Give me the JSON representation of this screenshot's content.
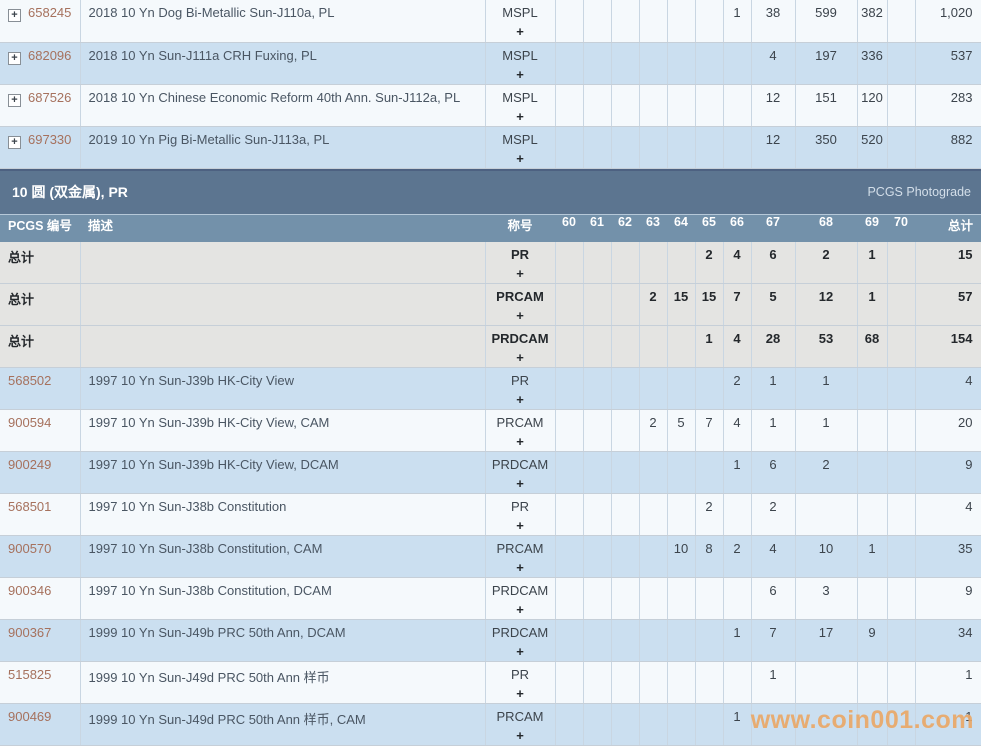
{
  "section": {
    "title": "10 圆 (双金属), PR",
    "photograde_label": "PCGS Photograde"
  },
  "table": {
    "headers": {
      "pcgs_no": "PCGS 编号",
      "desc": "描述",
      "desig": "称号",
      "total": "总计"
    },
    "grade_labels": [
      "60",
      "61",
      "62",
      "63",
      "64",
      "65",
      "66",
      "67",
      "68",
      "69",
      "70"
    ],
    "plus_label": "+",
    "expand_icon_glyph": "+",
    "summary_label": "总计"
  },
  "mspl_rows": [
    {
      "row_type": "coin",
      "pcgs_no": "658245",
      "description": "2018 10 Yn Dog Bi-Metallic Sun-J110a, PL",
      "designation": "MSPL",
      "grades": [
        "",
        "",
        "",
        "",
        "",
        "",
        "1",
        "38",
        "599",
        "382",
        ""
      ],
      "total": "1,020",
      "shade": "light"
    },
    {
      "row_type": "coin",
      "pcgs_no": "682096",
      "description": "2018 10 Yn Sun-J111a CRH Fuxing, PL",
      "designation": "MSPL",
      "grades": [
        "",
        "",
        "",
        "",
        "",
        "",
        "",
        "4",
        "197",
        "336",
        ""
      ],
      "total": "537",
      "shade": "blue"
    },
    {
      "row_type": "coin",
      "pcgs_no": "687526",
      "description": "2018 10 Yn Chinese Economic Reform 40th Ann. Sun-J112a, PL",
      "designation": "MSPL",
      "grades": [
        "",
        "",
        "",
        "",
        "",
        "",
        "",
        "12",
        "151",
        "120",
        ""
      ],
      "total": "283",
      "shade": "light"
    },
    {
      "row_type": "coin",
      "pcgs_no": "697330",
      "description": "2019 10 Yn Pig Bi-Metallic Sun-J113a, PL",
      "designation": "MSPL",
      "grades": [
        "",
        "",
        "",
        "",
        "",
        "",
        "",
        "12",
        "350",
        "520",
        ""
      ],
      "total": "882",
      "shade": "blue"
    }
  ],
  "pr_rows": [
    {
      "row_type": "summary",
      "label": "总计",
      "description": "",
      "designation": "PR",
      "grades": [
        "",
        "",
        "",
        "",
        "",
        "2",
        "4",
        "6",
        "2",
        "1",
        ""
      ],
      "total": "15",
      "shade": "summary"
    },
    {
      "row_type": "summary",
      "label": "总计",
      "description": "",
      "designation": "PRCAM",
      "grades": [
        "",
        "",
        "",
        "2",
        "15",
        "15",
        "7",
        "5",
        "12",
        "1",
        ""
      ],
      "total": "57",
      "shade": "summary"
    },
    {
      "row_type": "summary",
      "label": "总计",
      "description": "",
      "designation": "PRDCAM",
      "grades": [
        "",
        "",
        "",
        "",
        "",
        "1",
        "4",
        "28",
        "53",
        "68",
        ""
      ],
      "total": "154",
      "shade": "summary"
    },
    {
      "row_type": "coin",
      "pcgs_no": "568502",
      "description": "1997 10 Yn Sun-J39b HK-City View",
      "designation": "PR",
      "grades": [
        "",
        "",
        "",
        "",
        "",
        "",
        "2",
        "1",
        "1",
        "",
        ""
      ],
      "total": "4",
      "shade": "blue"
    },
    {
      "row_type": "coin",
      "pcgs_no": "900594",
      "description": "1997 10 Yn Sun-J39b HK-City View, CAM",
      "designation": "PRCAM",
      "grades": [
        "",
        "",
        "",
        "2",
        "5",
        "7",
        "4",
        "1",
        "1",
        "",
        ""
      ],
      "total": "20",
      "shade": "light"
    },
    {
      "row_type": "coin",
      "pcgs_no": "900249",
      "description": "1997 10 Yn Sun-J39b HK-City View, DCAM",
      "designation": "PRDCAM",
      "grades": [
        "",
        "",
        "",
        "",
        "",
        "",
        "1",
        "6",
        "2",
        "",
        ""
      ],
      "total": "9",
      "shade": "blue"
    },
    {
      "row_type": "coin",
      "pcgs_no": "568501",
      "description": "1997 10 Yn Sun-J38b Constitution",
      "designation": "PR",
      "grades": [
        "",
        "",
        "",
        "",
        "",
        "2",
        "",
        "2",
        "",
        "",
        ""
      ],
      "total": "4",
      "shade": "light"
    },
    {
      "row_type": "coin",
      "pcgs_no": "900570",
      "description": "1997 10 Yn Sun-J38b Constitution, CAM",
      "designation": "PRCAM",
      "grades": [
        "",
        "",
        "",
        "",
        "10",
        "8",
        "2",
        "4",
        "10",
        "1",
        ""
      ],
      "total": "35",
      "shade": "blue"
    },
    {
      "row_type": "coin",
      "pcgs_no": "900346",
      "description": "1997 10 Yn Sun-J38b Constitution, DCAM",
      "designation": "PRDCAM",
      "grades": [
        "",
        "",
        "",
        "",
        "",
        "",
        "",
        "6",
        "3",
        "",
        ""
      ],
      "total": "9",
      "shade": "light"
    },
    {
      "row_type": "coin",
      "pcgs_no": "900367",
      "description": "1999 10 Yn Sun-J49b PRC 50th Ann, DCAM",
      "designation": "PRDCAM",
      "grades": [
        "",
        "",
        "",
        "",
        "",
        "",
        "1",
        "7",
        "17",
        "9",
        ""
      ],
      "total": "34",
      "shade": "blue"
    },
    {
      "row_type": "coin",
      "pcgs_no": "515825",
      "description": "1999 10 Yn Sun-J49d PRC 50th Ann 样币",
      "designation": "PR",
      "grades": [
        "",
        "",
        "",
        "",
        "",
        "",
        "",
        "1",
        "",
        "",
        ""
      ],
      "total": "1",
      "shade": "light"
    },
    {
      "row_type": "coin",
      "pcgs_no": "900469",
      "description": "1999 10 Yn Sun-J49d PRC 50th Ann 样币, CAM",
      "designation": "PRCAM",
      "grades": [
        "",
        "",
        "",
        "",
        "",
        "",
        "1",
        "",
        "",
        "",
        ""
      ],
      "total": "1",
      "shade": "blue"
    }
  ],
  "watermark": {
    "text": "www.coin001.com"
  },
  "colors": {
    "section_bar_bg": "#5c7590",
    "section_bar_border": "#4d6181",
    "header_row_bg": "#7391aa",
    "row_light": "#f5f9fc",
    "row_blue": "#cbdff0",
    "row_summary_gray": "#e4e4e2",
    "grid_line": "#c9d6e2",
    "pcgs_number_link": "#a6715d",
    "description_text": "#4a5663",
    "value_text": "#3c444c",
    "watermark_orange": "#e9a767"
  }
}
